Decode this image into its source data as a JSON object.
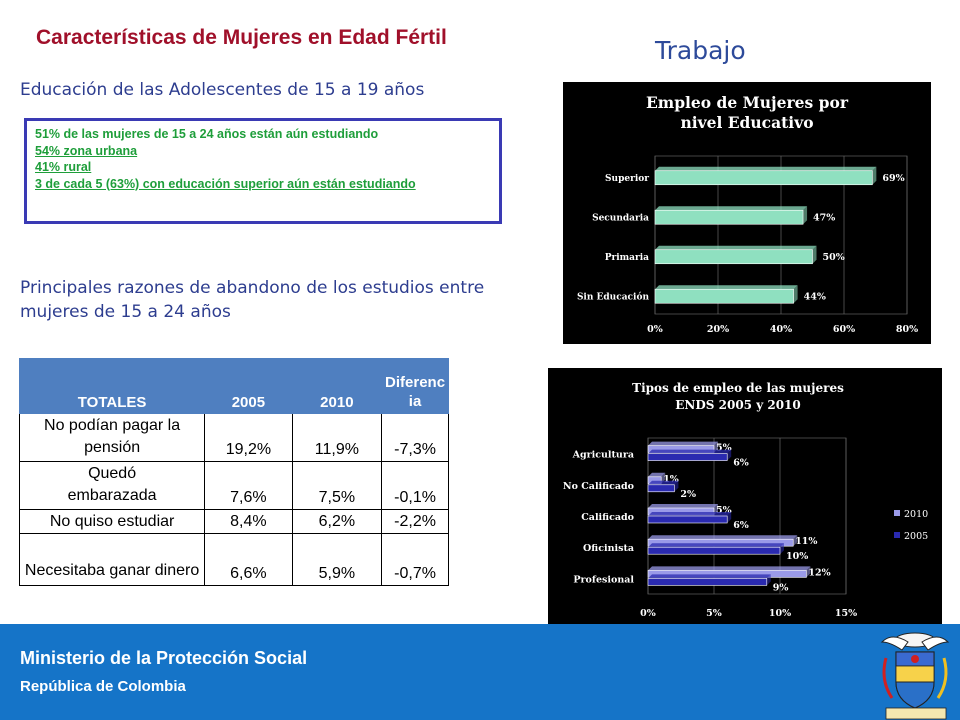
{
  "header": {
    "title": "Características de Mujeres en Edad Fértil",
    "section": "Trabajo"
  },
  "education": {
    "heading": "Educación de las Adolescentes  de 15 a 19 años",
    "box_lines": [
      "51% de las mujeres de 15 a 24 años están aún estudiando",
      "54% zona urbana",
      "41% rural",
      "3 de cada 5 (63%) con educación superior aún están estudiando"
    ]
  },
  "reasons": {
    "heading": "Principales razones de abandono de los estudios entre mujeres de 15 a 24 años",
    "table": {
      "headers": [
        "TOTALES",
        "2005",
        "2010",
        "Diferencia"
      ],
      "rows": [
        [
          "No podían pagar la pensión",
          "19,2%",
          "11,9%",
          "-7,3%"
        ],
        [
          "Quedó embarazada",
          "7,6%",
          "7,5%",
          "-0,1%"
        ],
        [
          "No quiso estudiar",
          "8,4%",
          "6,2%",
          "-2,2%"
        ],
        [
          "Necesitaba ganar dinero",
          "6,6%",
          "5,9%",
          "-0,7%"
        ]
      ]
    }
  },
  "chart_data": [
    {
      "type": "bar",
      "orientation": "horizontal",
      "title": "Empleo de Mujeres por nivel Educativo",
      "categories": [
        "Superior",
        "Secundaria",
        "Primaria",
        "Sin Educación"
      ],
      "values": [
        69,
        47,
        50,
        44
      ],
      "value_labels": [
        "69%",
        "47%",
        "50%",
        "44%"
      ],
      "xlim": [
        0,
        80
      ],
      "x_ticks": [
        "0%",
        "20%",
        "40%",
        "60%",
        "80%"
      ],
      "grid": true,
      "colors": {
        "bar": "#8fe0c0",
        "background": "#000000",
        "text": "#ffffff"
      }
    },
    {
      "type": "bar",
      "orientation": "horizontal",
      "title": "Tipos de empleo de las mujeres ENDS 2005 y 2010",
      "categories": [
        "Agricultura",
        "No Calificado",
        "Calificado",
        "Oficinista",
        "Profesional"
      ],
      "series": [
        {
          "name": "2010",
          "values": [
            5,
            1,
            5,
            11,
            12
          ],
          "labels": [
            "5%",
            "1%",
            "5%",
            "11%",
            "12%"
          ],
          "color": "#9a9ae8"
        },
        {
          "name": "2005",
          "values": [
            6,
            2,
            6,
            10,
            9
          ],
          "labels": [
            "6%",
            "2%",
            "6%",
            "10%",
            "9%"
          ],
          "color": "#2a2ab0"
        }
      ],
      "xlim": [
        0,
        15
      ],
      "x_ticks": [
        "0%",
        "5%",
        "10%",
        "15%"
      ],
      "legend": "right",
      "grid": true,
      "colors": {
        "background": "#000000",
        "text": "#ffffff"
      }
    }
  ],
  "footer": {
    "ministry": "Ministerio de la Protección Social",
    "republic": "República de Colombia"
  }
}
